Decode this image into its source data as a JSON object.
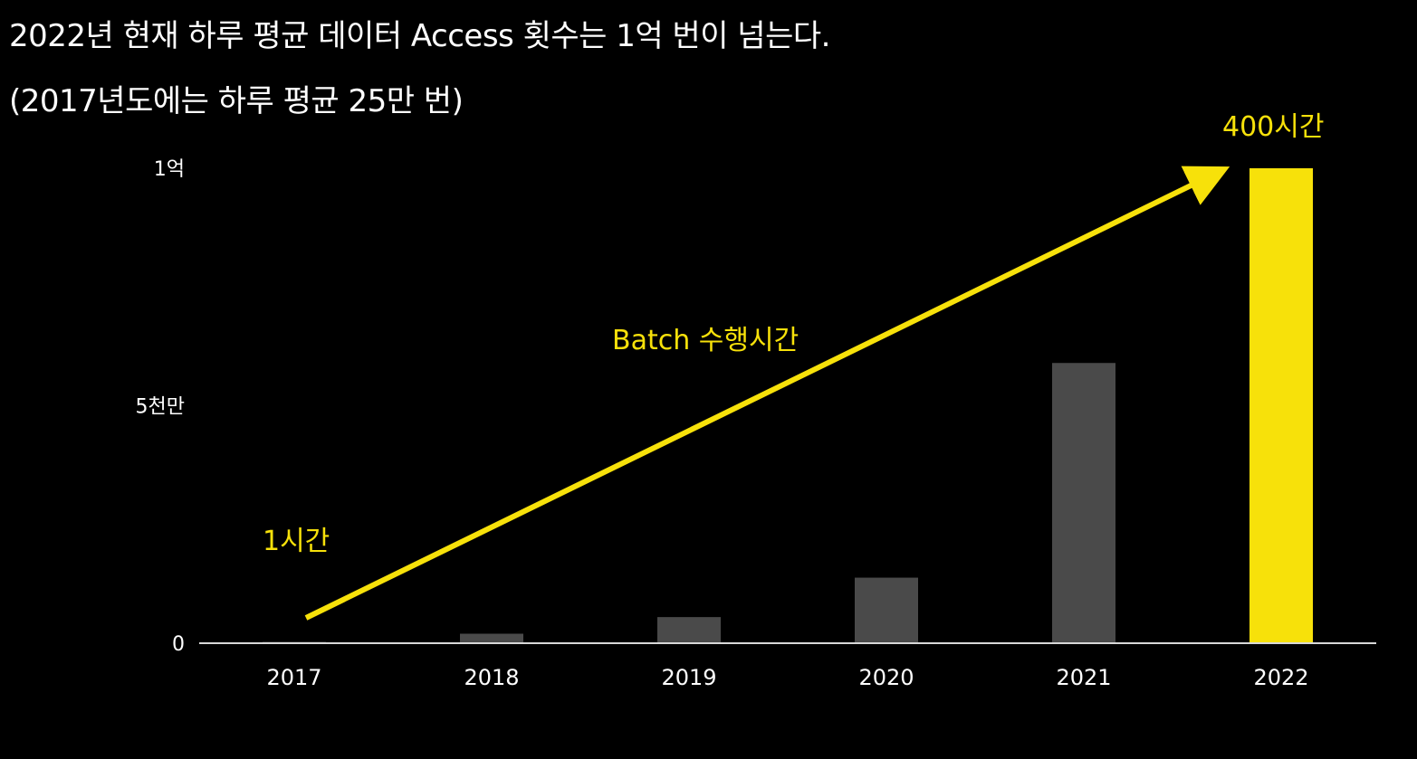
{
  "headline": "2022년 현재 하루 평균 데이터 Access 횟수는 1억 번이 넘는다.",
  "subline": "(2017년도에는 하루 평균 25만 번)",
  "colors": {
    "background": "#000000",
    "text": "#ffffff",
    "bar": "#4a4a4a",
    "highlight": "#f7e10a"
  },
  "chart_data": {
    "type": "bar",
    "categories": [
      "2017",
      "2018",
      "2019",
      "2020",
      "2021",
      "2022"
    ],
    "values": [
      250000,
      2000000,
      5500000,
      13800000,
      59000000,
      100000000
    ],
    "highlight_category": "2022",
    "ylim": [
      0,
      100000000
    ],
    "yticks": [
      {
        "value": 0,
        "label": "0"
      },
      {
        "value": 50000000,
        "label": "5천만"
      },
      {
        "value": 100000000,
        "label": "1억"
      }
    ],
    "annotations": {
      "trend_label": "Batch 수행시간",
      "start_label": "1시간",
      "end_label": "400시간"
    },
    "grid": false,
    "legend": "none"
  }
}
